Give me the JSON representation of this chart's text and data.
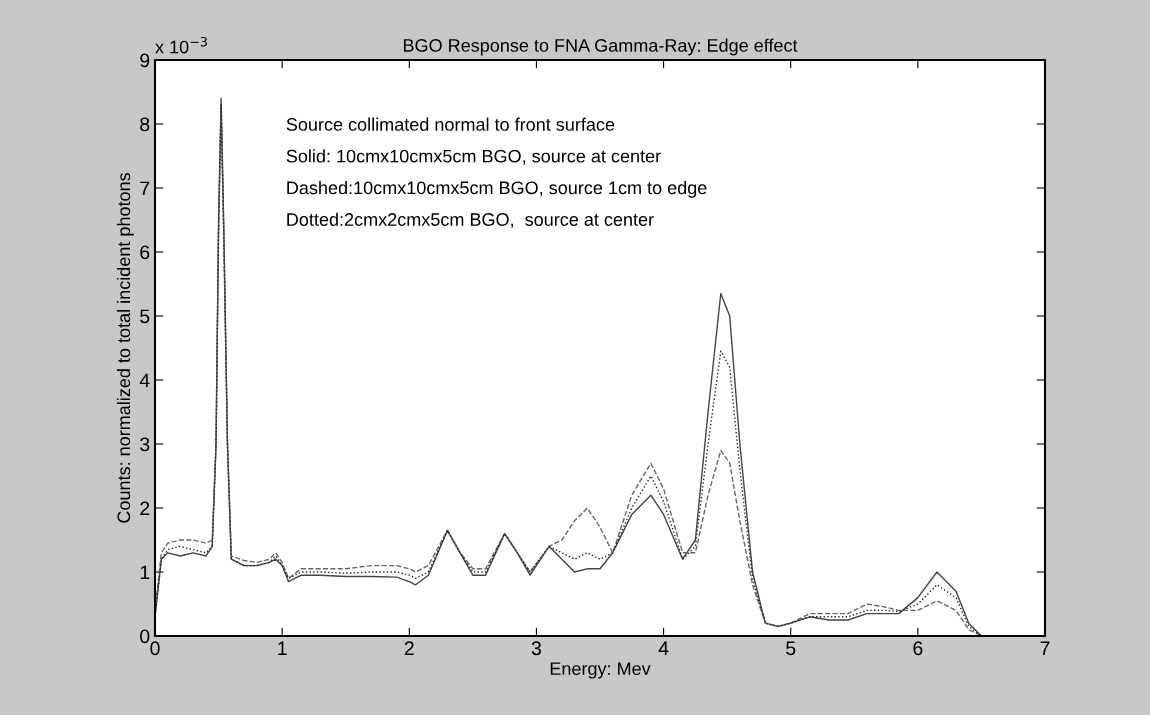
{
  "chart_data": {
    "type": "line",
    "title": "BGO Response to FNA Gamma-Ray: Edge effect",
    "xlabel": "Energy: Mev",
    "ylabel": "Counts: normalized to total incident photons",
    "xlim": [
      0,
      7
    ],
    "xticks": [
      0,
      1,
      2,
      3,
      4,
      5,
      6,
      7
    ],
    "ylim": [
      0,
      9
    ],
    "yticks": [
      0,
      1,
      2,
      3,
      4,
      5,
      6,
      7,
      8,
      9
    ],
    "annotations": [
      "x 10$^{−3}$",
      "Source collimated normal to front surface",
      "Solid: 10cmx10cmx5cm BGO, source at center",
      "Dashed:10cmx10cmx5cm BGO, source 1cm to edge",
      "Dotted:2cmx2cmx5cm BGO,  source at center"
    ],
    "grid": false,
    "legend": false,
    "series": [
      {
        "color": "#444444",
        "line_style": "solid",
        "x": [
          0,
          0.05,
          0.1,
          0.2,
          0.3,
          0.4,
          0.45,
          0.48,
          0.5,
          0.52,
          0.54,
          0.57,
          0.6,
          0.7,
          0.8,
          0.9,
          0.95,
          1.0,
          1.05,
          1.15,
          1.3,
          1.5,
          1.7,
          1.9,
          2.0,
          2.05,
          2.15,
          2.3,
          2.4,
          2.5,
          2.6,
          2.75,
          2.85,
          2.95,
          3.1,
          3.2,
          3.3,
          3.4,
          3.5,
          3.6,
          3.75,
          3.9,
          4.0,
          4.15,
          4.25,
          4.35,
          4.45,
          4.52,
          4.6,
          4.7,
          4.8,
          4.9,
          5.0,
          5.15,
          5.3,
          5.45,
          5.6,
          5.75,
          5.85,
          6.0,
          6.15,
          6.3,
          6.4,
          6.5
        ],
        "values": [
          0.3,
          1.2,
          1.3,
          1.25,
          1.3,
          1.25,
          1.4,
          3,
          6.5,
          8.4,
          6.5,
          3,
          1.2,
          1.1,
          1.1,
          1.15,
          1.2,
          1.1,
          0.85,
          0.95,
          0.95,
          0.93,
          0.93,
          0.92,
          0.85,
          0.8,
          0.95,
          1.65,
          1.3,
          0.95,
          0.95,
          1.6,
          1.3,
          0.95,
          1.4,
          1.2,
          1.0,
          1.05,
          1.05,
          1.3,
          1.9,
          2.2,
          1.9,
          1.2,
          1.5,
          3.5,
          5.35,
          5.0,
          3.0,
          1.0,
          0.2,
          0.15,
          0.2,
          0.3,
          0.25,
          0.25,
          0.35,
          0.35,
          0.35,
          0.6,
          1.0,
          0.7,
          0.2,
          0
        ]
      },
      {
        "color": "#666666",
        "line_style": "dashed",
        "x": [
          0,
          0.05,
          0.1,
          0.2,
          0.3,
          0.4,
          0.45,
          0.48,
          0.5,
          0.52,
          0.54,
          0.57,
          0.6,
          0.7,
          0.8,
          0.9,
          0.95,
          1.0,
          1.05,
          1.15,
          1.3,
          1.5,
          1.7,
          1.9,
          2.0,
          2.05,
          2.15,
          2.3,
          2.4,
          2.5,
          2.6,
          2.75,
          2.85,
          2.95,
          3.1,
          3.2,
          3.3,
          3.4,
          3.5,
          3.6,
          3.75,
          3.9,
          4.0,
          4.15,
          4.25,
          4.35,
          4.45,
          4.52,
          4.6,
          4.7,
          4.8,
          4.9,
          5.0,
          5.15,
          5.3,
          5.45,
          5.6,
          5.75,
          5.85,
          6.0,
          6.15,
          6.3,
          6.4,
          6.5
        ],
        "values": [
          0.4,
          1.3,
          1.45,
          1.5,
          1.5,
          1.45,
          1.5,
          3,
          6.3,
          8.2,
          6.3,
          3,
          1.25,
          1.18,
          1.15,
          1.2,
          1.3,
          1.15,
          0.9,
          1.05,
          1.05,
          1.05,
          1.1,
          1.1,
          1.05,
          1.0,
          1.1,
          1.65,
          1.3,
          1.05,
          1.05,
          1.6,
          1.3,
          1.0,
          1.4,
          1.5,
          1.8,
          2.0,
          1.7,
          1.3,
          2.2,
          2.7,
          2.3,
          1.3,
          1.3,
          2.2,
          2.9,
          2.7,
          1.8,
          0.8,
          0.2,
          0.15,
          0.2,
          0.35,
          0.35,
          0.35,
          0.5,
          0.45,
          0.4,
          0.4,
          0.55,
          0.4,
          0.1,
          0
        ]
      },
      {
        "color": "#222222",
        "line_style": "dotted",
        "x": [
          0,
          0.05,
          0.1,
          0.2,
          0.3,
          0.4,
          0.45,
          0.48,
          0.5,
          0.52,
          0.54,
          0.57,
          0.6,
          0.7,
          0.8,
          0.9,
          0.95,
          1.0,
          1.05,
          1.15,
          1.3,
          1.5,
          1.7,
          1.9,
          2.0,
          2.05,
          2.15,
          2.3,
          2.4,
          2.5,
          2.6,
          2.75,
          2.85,
          2.95,
          3.1,
          3.2,
          3.3,
          3.4,
          3.5,
          3.6,
          3.75,
          3.9,
          4.0,
          4.15,
          4.25,
          4.35,
          4.45,
          4.52,
          4.6,
          4.7,
          4.8,
          4.9,
          5.0,
          5.15,
          5.3,
          5.45,
          5.6,
          5.75,
          5.85,
          6.0,
          6.15,
          6.3,
          6.4,
          6.5
        ],
        "values": [
          0.3,
          1.2,
          1.35,
          1.4,
          1.35,
          1.3,
          1.4,
          3,
          6.4,
          8.3,
          6.4,
          3,
          1.2,
          1.1,
          1.1,
          1.15,
          1.25,
          1.1,
          0.9,
          1.0,
          1.0,
          0.98,
          1.0,
          1.0,
          0.95,
          0.9,
          1.0,
          1.65,
          1.3,
          1.0,
          1.0,
          1.6,
          1.3,
          1.0,
          1.4,
          1.3,
          1.2,
          1.3,
          1.2,
          1.3,
          2.0,
          2.5,
          2.1,
          1.2,
          1.4,
          3.0,
          4.45,
          4.2,
          2.6,
          0.9,
          0.2,
          0.15,
          0.2,
          0.3,
          0.3,
          0.3,
          0.4,
          0.4,
          0.38,
          0.5,
          0.8,
          0.6,
          0.15,
          0
        ]
      }
    ]
  }
}
